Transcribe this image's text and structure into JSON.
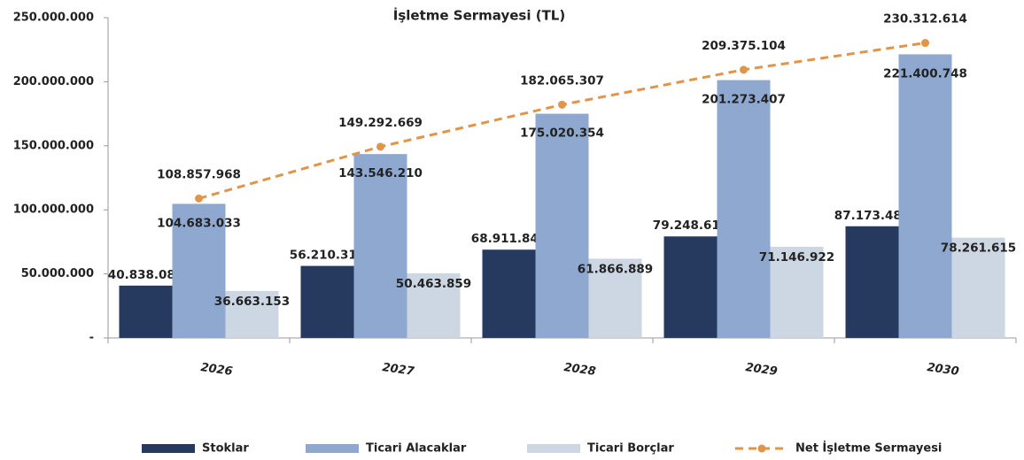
{
  "chart_data": {
    "type": "bar",
    "title": "İşletme Sermayesi (TL)",
    "categories": [
      "2026",
      "2027",
      "2028",
      "2029",
      "2030"
    ],
    "series": [
      {
        "name": "Stoklar",
        "color": "#263a60",
        "values": [
          40838088,
          56210318,
          68911842,
          79248619,
          87173481
        ],
        "value_labels": [
          "40.838.088",
          "56.210.318",
          "68.911.842",
          "79.248.619",
          "87.173.481"
        ]
      },
      {
        "name": "Ticari  Alacaklar",
        "color": "#8fa8cf",
        "values": [
          104683033,
          143546210,
          175020354,
          201273407,
          221400748
        ],
        "value_labels": [
          "104.683.033",
          "143.546.210",
          "175.020.354",
          "201.273.407",
          "221.400.748"
        ]
      },
      {
        "name": "Ticari Borçlar",
        "color": "#cdd6e3",
        "values": [
          36663153,
          50463859,
          61866889,
          71146922,
          78261615
        ],
        "value_labels": [
          "36.663.153",
          "50.463.859",
          "61.866.889",
          "71.146.922",
          "78.261.615"
        ]
      },
      {
        "name": "Net İşletme Sermayesi",
        "color": "#e0954a",
        "type": "line",
        "values": [
          108857968,
          149292669,
          182065307,
          209375104,
          230312614
        ],
        "value_labels": [
          "108.857.968",
          "149.292.669",
          "182.065.307",
          "209.375.104",
          "230.312.614"
        ]
      }
    ],
    "ylim": [
      0,
      250000000
    ],
    "yticks": [
      {
        "value": 0,
        "label": "-"
      },
      {
        "value": 50000000,
        "label": "50.000.000"
      },
      {
        "value": 100000000,
        "label": "100.000.000"
      },
      {
        "value": 150000000,
        "label": "150.000.000"
      },
      {
        "value": 200000000,
        "label": "200.000.000"
      },
      {
        "value": 250000000,
        "label": "250.000.000"
      }
    ],
    "legend": "bottom"
  }
}
